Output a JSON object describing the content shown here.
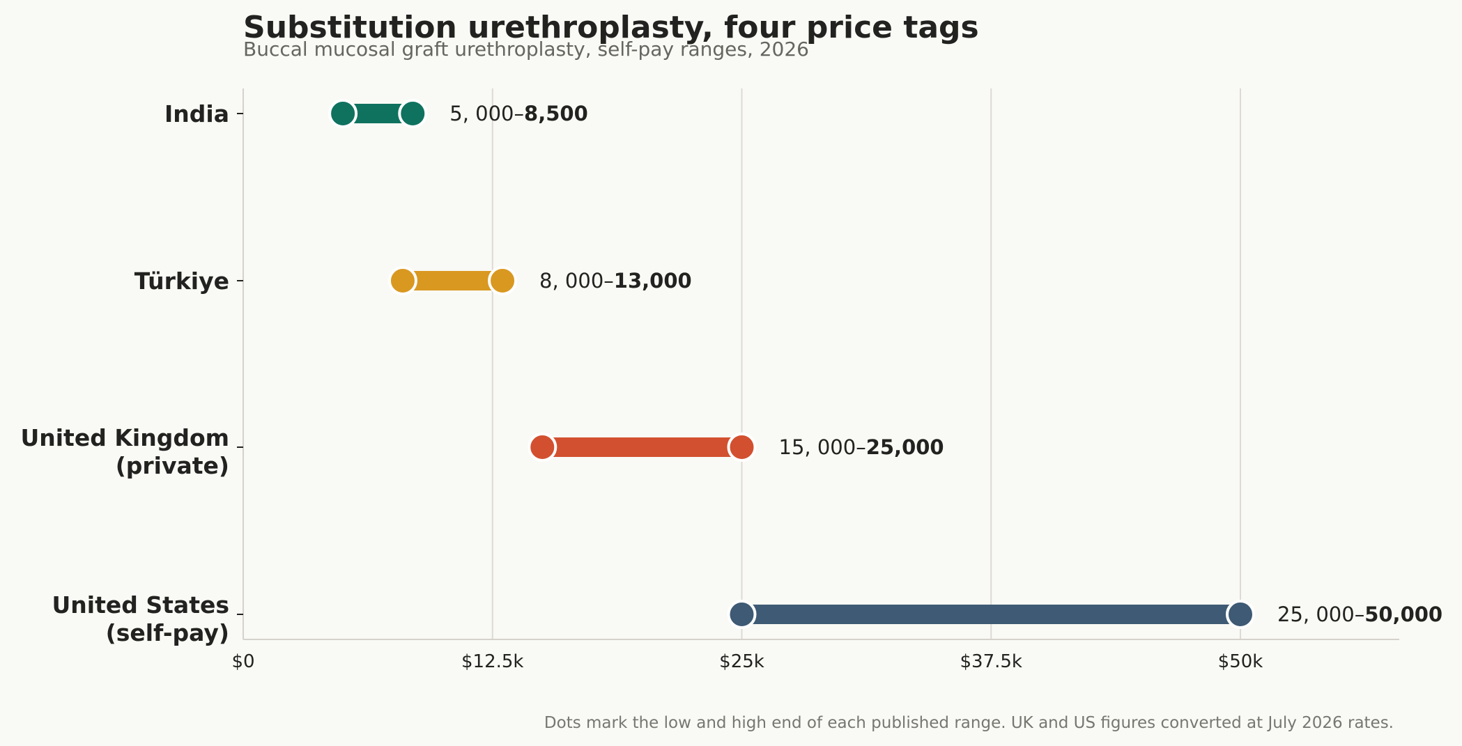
{
  "chart_data": {
    "type": "range",
    "title": "Substitution urethroplasty, four price tags",
    "subtitle": "Buccal mucosal graft urethroplasty, self-pay ranges, 2026",
    "xlim": [
      0,
      58000
    ],
    "grid": true,
    "x_ticks": [
      {
        "value": 0,
        "label": "$0"
      },
      {
        "value": 12500,
        "label": "$12.5k"
      },
      {
        "value": 25000,
        "label": "$25k"
      },
      {
        "value": 37500,
        "label": "$37.5k"
      },
      {
        "value": 50000,
        "label": "$50k"
      }
    ],
    "rows": [
      {
        "category": [
          "India"
        ],
        "low": 5000,
        "high": 8500,
        "color": "#0e725f",
        "label_low": "5, 000–",
        "label_high": "8,500"
      },
      {
        "category": [
          "Türkiye"
        ],
        "low": 8000,
        "high": 13000,
        "color": "#d99820",
        "label_low": "8, 000–",
        "label_high": "13,000"
      },
      {
        "category": [
          "United Kingdom",
          "(private)"
        ],
        "low": 15000,
        "high": 25000,
        "color": "#d2502f",
        "label_low": "15, 000–",
        "label_high": "25,000"
      },
      {
        "category": [
          "United States",
          "(self-pay)"
        ],
        "low": 25000,
        "high": 50000,
        "color": "#3e5a74",
        "label_low": "25, 000–",
        "label_high": "50,000"
      }
    ],
    "footnote": "Dots mark the low and high end of each published range. UK and US figures converted at July 2026 rates."
  }
}
